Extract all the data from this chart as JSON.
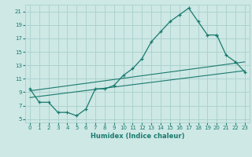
{
  "xlabel": "Humidex (Indice chaleur)",
  "x_ticks": [
    0,
    1,
    2,
    3,
    4,
    5,
    6,
    7,
    8,
    9,
    10,
    11,
    12,
    13,
    14,
    15,
    16,
    17,
    18,
    19,
    20,
    21,
    22,
    23
  ],
  "y_ticks": [
    5,
    7,
    9,
    11,
    13,
    15,
    17,
    19,
    21
  ],
  "xlim": [
    -0.5,
    23.5
  ],
  "ylim": [
    4.5,
    22.0
  ],
  "bg_color": "#cde8e5",
  "grid_color": "#aacfcc",
  "line_color": "#1a7a6e",
  "main_curve_x": [
    0,
    1,
    2,
    3,
    4,
    5,
    6,
    7,
    8,
    9,
    10,
    11,
    12,
    13,
    14,
    15,
    16,
    17,
    18,
    19,
    20
  ],
  "main_curve_y": [
    9.5,
    7.5,
    7.5,
    6.0,
    6.0,
    5.5,
    6.5,
    9.5,
    9.5,
    10.0,
    11.5,
    12.5,
    14.0,
    16.5,
    18.0,
    19.5,
    20.5,
    21.5,
    19.5,
    17.5,
    17.5
  ],
  "tail_curve_x": [
    20,
    21,
    22,
    23
  ],
  "tail_curve_y": [
    17.5,
    14.5,
    13.5,
    12.0
  ],
  "line1_x": [
    0,
    23
  ],
  "line1_y": [
    9.2,
    13.5
  ],
  "line2_x": [
    0,
    23
  ],
  "line2_y": [
    8.2,
    12.2
  ]
}
